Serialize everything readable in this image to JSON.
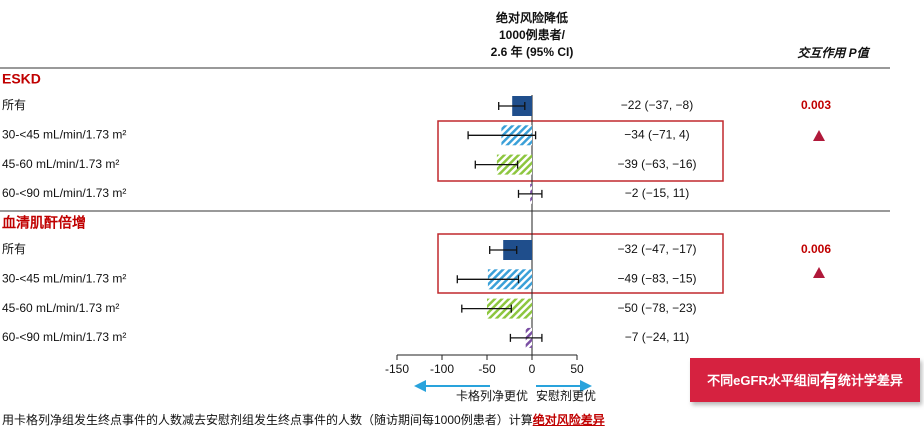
{
  "chart_data": {
    "type": "forest",
    "column_title": [
      "绝对风险降低",
      "1000例患者/",
      "2.6 年 (95% CI)"
    ],
    "p_header": "交互作用 P值",
    "colors": [
      "#1f4e8c",
      "#3aa0d8",
      "#8dc63f",
      "#7a4ea3"
    ],
    "groups": [
      {
        "name": "ESKD",
        "categories": [
          "所有",
          "30-<45 mL/min/1.73 m²",
          "45-60 mL/min/1.73 m²",
          "60-<90 mL/min/1.73 m²"
        ],
        "values": [
          -22,
          -34,
          -39,
          -2
        ],
        "lower": [
          -37,
          -71,
          -63,
          -15
        ],
        "upper": [
          -8,
          4,
          -16,
          11
        ],
        "value_labels": [
          "−22 (−37, −8)",
          "−34 (−71, 4)",
          "−39 (−63, −16)",
          "−2 (−15, 11)"
        ],
        "p_value": 0.003
      },
      {
        "name": "血清肌酐倍增",
        "categories": [
          "所有",
          "30-<45 mL/min/1.73 m²",
          "45-60 mL/min/1.73 m²",
          "60-<90 mL/min/1.73 m²"
        ],
        "values": [
          -32,
          -49,
          -50,
          -7
        ],
        "lower": [
          -47,
          -83,
          -78,
          -24
        ],
        "upper": [
          -17,
          -15,
          -23,
          11
        ],
        "value_labels": [
          "−32 (−47, −17)",
          "−49 (−83, −15)",
          "−50 (−78, −23)",
          "−7 (−24, 11)"
        ],
        "p_value": 0.006
      }
    ],
    "xlim": [
      -150,
      50
    ],
    "xticks": [
      -150,
      -100,
      -50,
      0,
      50
    ],
    "favors": [
      "卡格列净更优",
      "安慰剂更优"
    ],
    "annotation": [
      "不同eGFR水平组间",
      "有",
      "统计学差异"
    ],
    "footnote": "用卡格列净组发生终点事件的人数减去安慰剂组发生终点事件的人数（随访期间每1000例患者）计算",
    "footnote_emphasis": "绝对风险差异"
  }
}
